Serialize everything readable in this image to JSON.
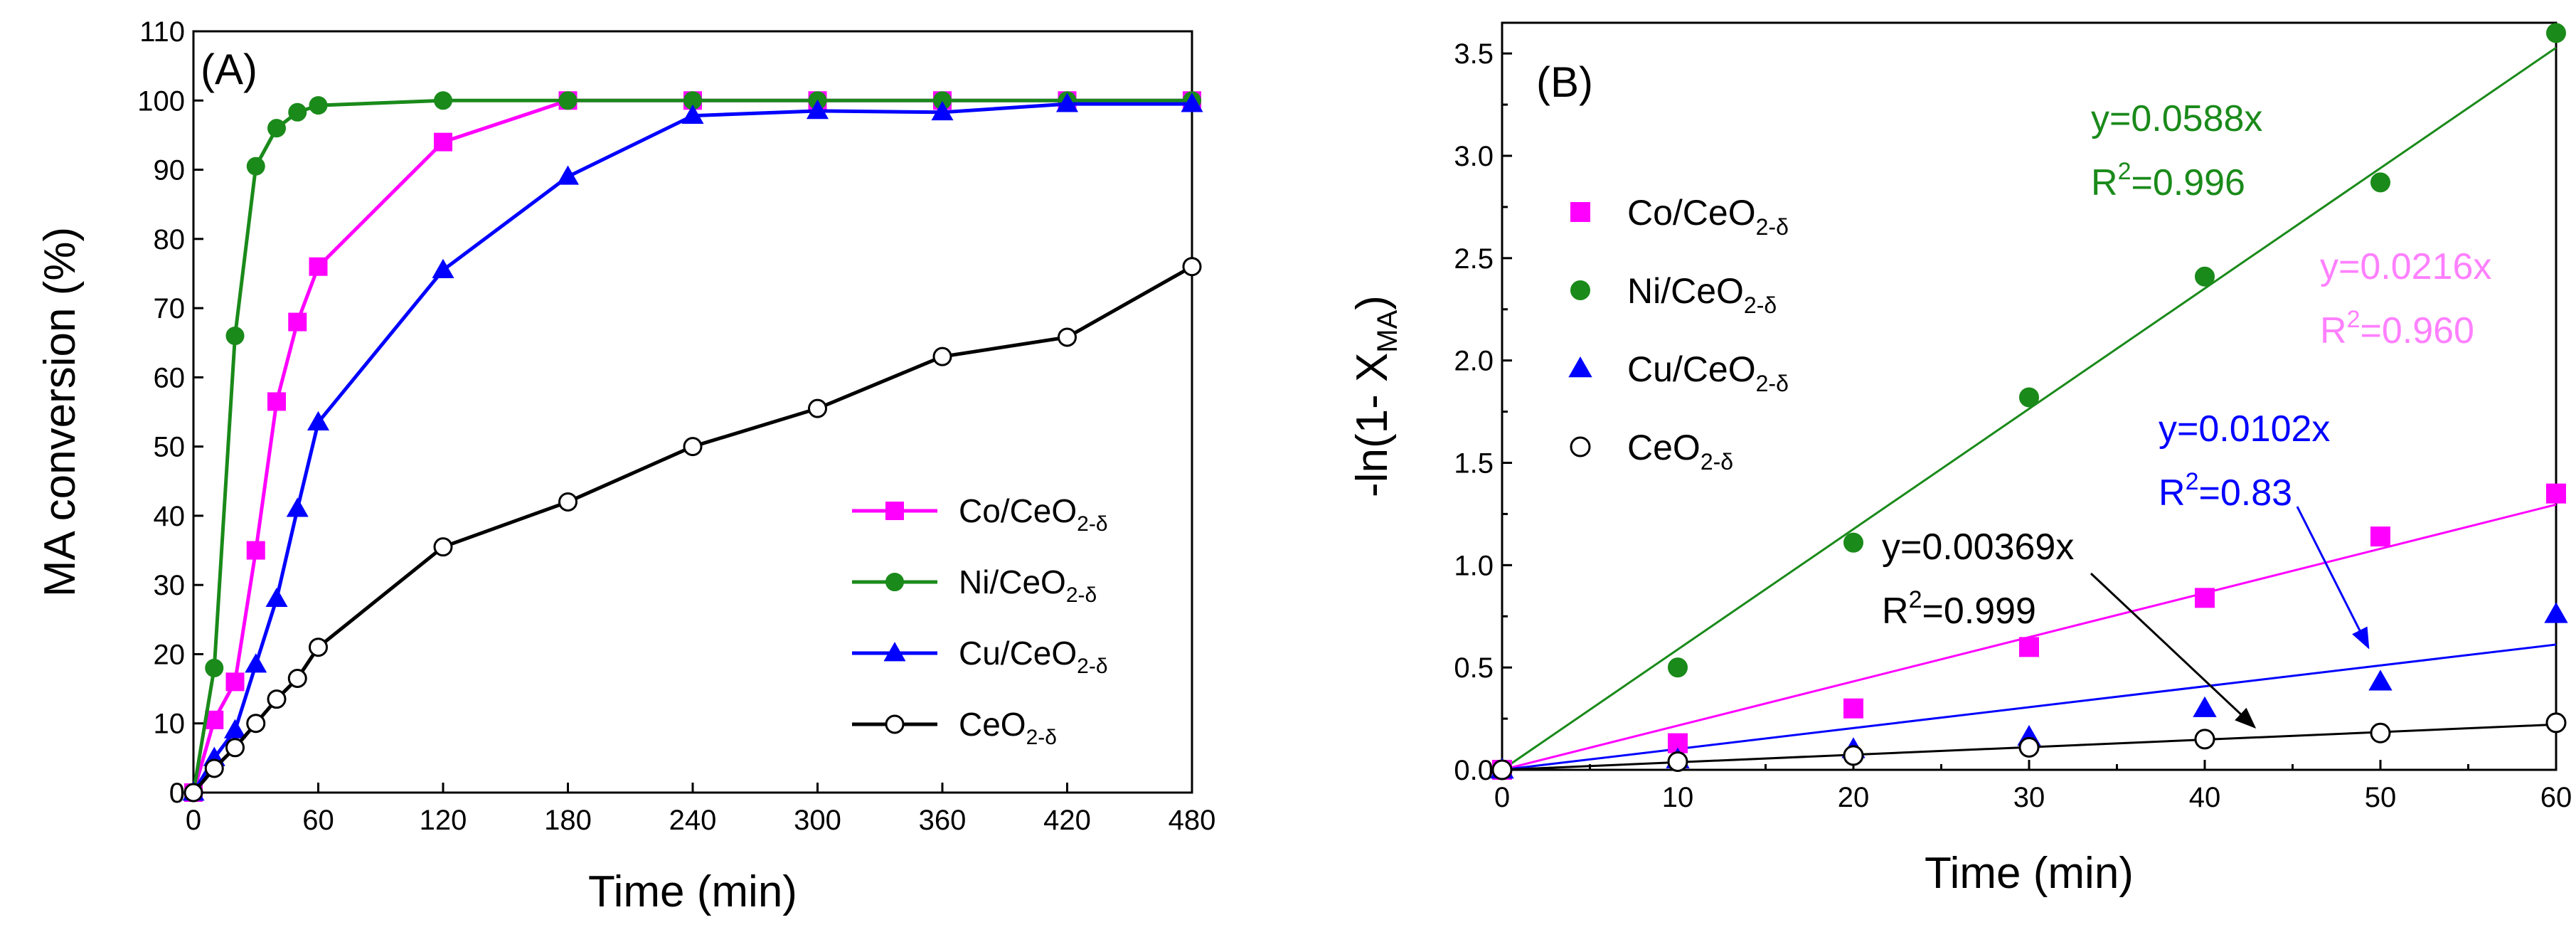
{
  "chart_data": [
    {
      "type": "line",
      "panel_label": "(A)",
      "title": "",
      "xlabel": "Time (min)",
      "ylabel": "MA conversion (%)",
      "xlim": [
        0,
        480
      ],
      "ylim": [
        0,
        110
      ],
      "xticks": [
        0,
        60,
        120,
        180,
        240,
        300,
        360,
        420,
        480
      ],
      "yticks": [
        0,
        10,
        20,
        30,
        40,
        50,
        60,
        70,
        80,
        90,
        100,
        110
      ],
      "grid": false,
      "legend_position": "bottom-right",
      "series": [
        {
          "name": "Co/CeO",
          "sub": "2-δ",
          "color": "#ff00ff",
          "marker": "square",
          "filled": true,
          "x": [
            0,
            10,
            20,
            30,
            40,
            50,
            60,
            120,
            180,
            240,
            300,
            360,
            420,
            480
          ],
          "y": [
            0,
            10.5,
            16,
            35,
            56.5,
            68,
            76,
            94,
            100,
            100,
            100,
            100,
            100,
            100
          ]
        },
        {
          "name": "Ni/CeO",
          "sub": "2-δ",
          "color": "#1a8a1a",
          "marker": "circle",
          "filled": true,
          "x": [
            0,
            10,
            20,
            30,
            40,
            50,
            60,
            120,
            180,
            240,
            300,
            360,
            420,
            480
          ],
          "y": [
            0,
            18,
            66,
            90.5,
            96,
            98.3,
            99.3,
            100,
            100,
            100,
            100,
            100,
            100,
            100
          ]
        },
        {
          "name": "Cu/CeO",
          "sub": "2-δ",
          "color": "#0000ff",
          "marker": "triangle",
          "filled": true,
          "x": [
            0,
            10,
            20,
            30,
            40,
            50,
            60,
            120,
            180,
            240,
            300,
            360,
            420,
            480
          ],
          "y": [
            0,
            5,
            9,
            18.5,
            28,
            41,
            53.5,
            75.5,
            89,
            97.8,
            98.5,
            98.3,
            99.5,
            99.5
          ]
        },
        {
          "name": "CeO",
          "sub": "2-δ",
          "color": "#000000",
          "marker": "circle",
          "filled": false,
          "x": [
            0,
            10,
            20,
            30,
            40,
            50,
            60,
            120,
            180,
            240,
            300,
            360,
            420,
            480
          ],
          "y": [
            0,
            3.5,
            6.5,
            10,
            13.5,
            16.5,
            21,
            35.5,
            42,
            50,
            55.5,
            63,
            65.8,
            76
          ]
        }
      ]
    },
    {
      "type": "scatter",
      "panel_label": "(B)",
      "title": "",
      "xlabel": "Time (min)",
      "ylabel_prefix": "-ln(1- X",
      "ylabel_sub": "MA",
      "ylabel_suffix": ")",
      "xlim": [
        0,
        60
      ],
      "ylim": [
        0,
        3.65
      ],
      "xticks": [
        0,
        10,
        20,
        30,
        40,
        50,
        60
      ],
      "yticks": [
        "0.0",
        "0.5",
        "1.0",
        "1.5",
        "2.0",
        "2.5",
        "3.0",
        "3.5"
      ],
      "grid": false,
      "legend_position": "top-left",
      "series": [
        {
          "name": "Co/CeO",
          "sub": "2-δ",
          "color": "#ff00ff",
          "marker": "square",
          "filled": true,
          "x": [
            0,
            10,
            20,
            30,
            40,
            50,
            60
          ],
          "y": [
            0,
            0.13,
            0.3,
            0.6,
            0.84,
            1.14,
            1.35
          ],
          "slope": 0.0216,
          "fit_color": "#ff00ff",
          "equation": "y=0.0216x",
          "r2_prefix": "R",
          "r2_value": "=0.960",
          "label_color": "#ff80ff"
        },
        {
          "name": "Ni/CeO",
          "sub": "2-δ",
          "color": "#1a8a1a",
          "marker": "circle",
          "filled": true,
          "x": [
            0,
            10,
            20,
            30,
            40,
            50,
            60
          ],
          "y": [
            0,
            0.5,
            1.11,
            1.82,
            2.41,
            2.87,
            3.6
          ],
          "slope": 0.0588,
          "fit_color": "#1a8a1a",
          "equation": "y=0.0588x",
          "r2_prefix": "R",
          "r2_value": "=0.996",
          "label_color": "#1a8a1a"
        },
        {
          "name": "Cu/CeO",
          "sub": "2-δ",
          "color": "#0000ff",
          "marker": "triangle",
          "filled": true,
          "x": [
            0,
            10,
            20,
            30,
            40,
            50,
            60
          ],
          "y": [
            0,
            0.05,
            0.1,
            0.16,
            0.3,
            0.43,
            0.76
          ],
          "slope": 0.0102,
          "fit_color": "#0000ff",
          "equation": "y=0.0102x",
          "r2_prefix": "R",
          "r2_value": "=0.83",
          "label_color": "#0000ff"
        },
        {
          "name": "CeO",
          "sub": "2-δ",
          "color": "#000000",
          "marker": "circle",
          "filled": false,
          "x": [
            0,
            10,
            20,
            30,
            40,
            50,
            60
          ],
          "y": [
            0,
            0.04,
            0.07,
            0.11,
            0.15,
            0.18,
            0.23
          ],
          "slope": 0.00369,
          "fit_color": "#000000",
          "equation": "y=0.00369x",
          "r2_prefix": "R",
          "r2_value": "=0.999",
          "label_color": "#000000"
        }
      ]
    }
  ]
}
